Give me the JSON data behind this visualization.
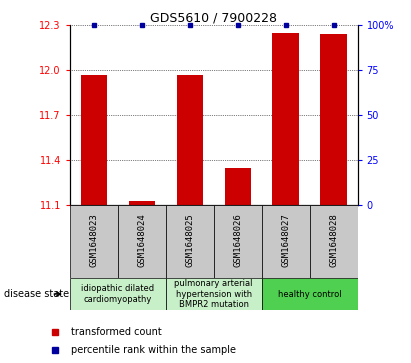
{
  "title": "GDS5610 / 7900228",
  "samples": [
    "GSM1648023",
    "GSM1648024",
    "GSM1648025",
    "GSM1648026",
    "GSM1648027",
    "GSM1648028"
  ],
  "red_values": [
    11.97,
    11.13,
    11.97,
    11.35,
    12.25,
    12.24
  ],
  "blue_values": [
    100,
    100,
    100,
    100,
    100,
    100
  ],
  "ylim_left": [
    11.1,
    12.3
  ],
  "ylim_right": [
    0,
    100
  ],
  "yticks_left": [
    11.1,
    11.4,
    11.7,
    12.0,
    12.3
  ],
  "yticks_right": [
    0,
    25,
    50,
    75,
    100
  ],
  "disease_groups": [
    {
      "label": "idiopathic dilated\ncardiomyopathy",
      "color": "#c8f0c8",
      "indices": [
        0,
        1
      ]
    },
    {
      "label": "pulmonary arterial\nhypertension with\nBMPR2 mutation",
      "color": "#c8f0c8",
      "indices": [
        2,
        3
      ]
    },
    {
      "label": "healthy control",
      "color": "#50d050",
      "indices": [
        4,
        5
      ]
    }
  ],
  "bar_color": "#cc0000",
  "dot_color": "#00009f",
  "bg_color": "#c8c8c8",
  "legend_red_label": "transformed count",
  "legend_blue_label": "percentile rank within the sample",
  "disease_state_label": "disease state"
}
